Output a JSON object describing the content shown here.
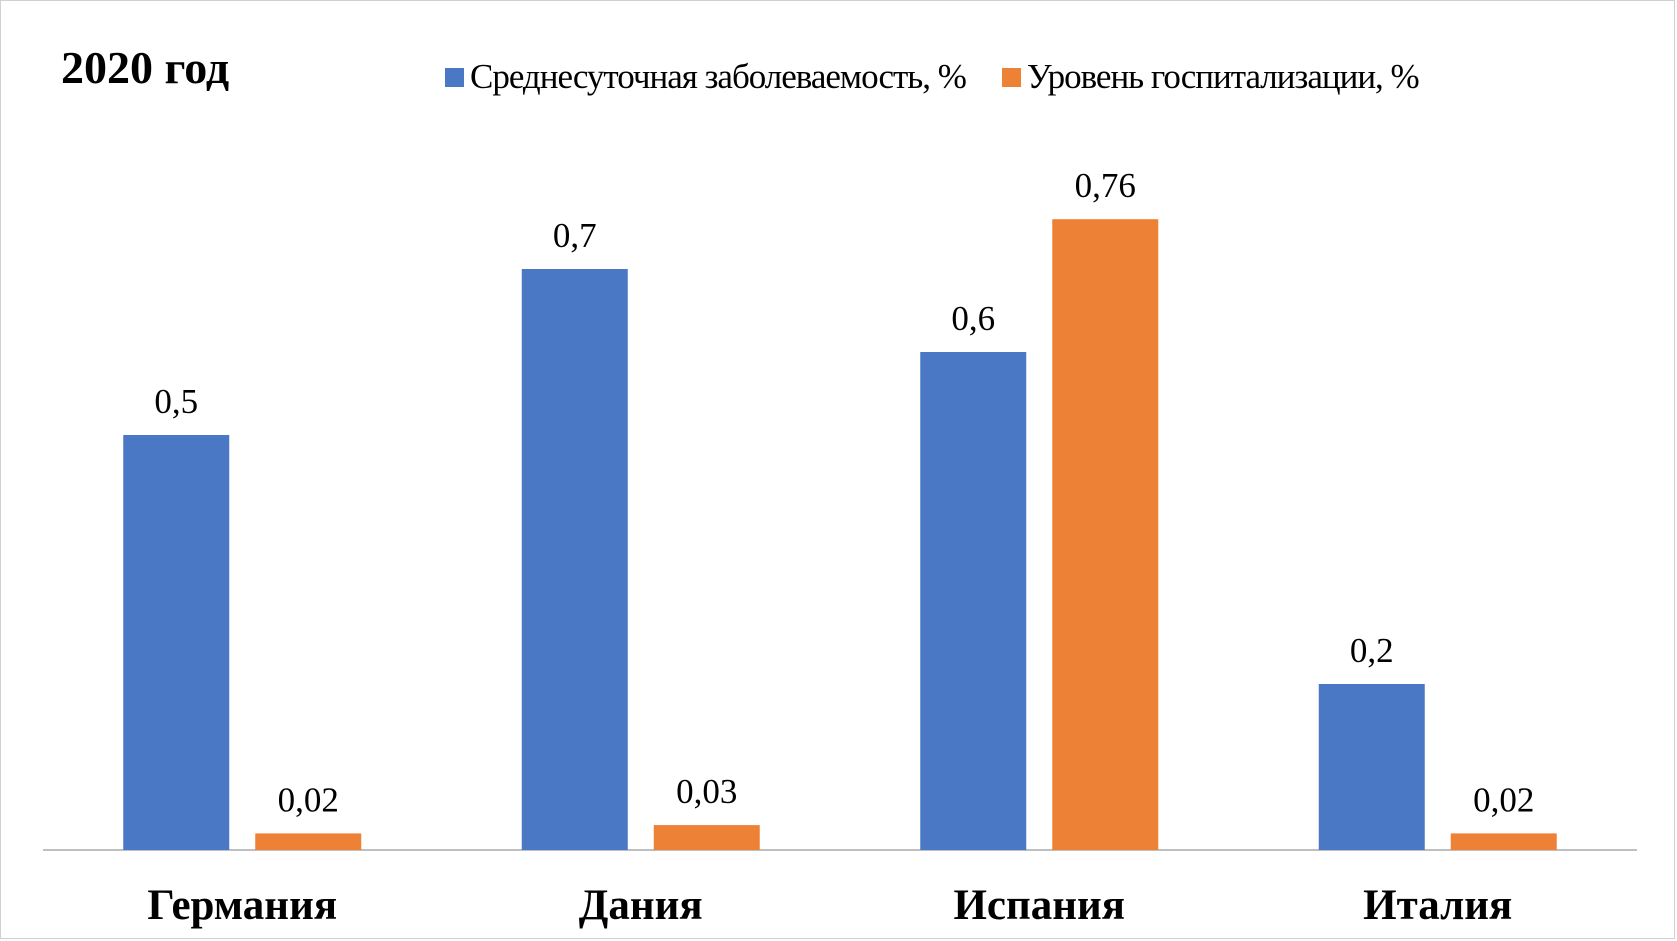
{
  "chart_data": {
    "type": "bar",
    "title": "2020 год",
    "xlabel": "",
    "ylabel": "",
    "ylim": [
      0,
      0.8
    ],
    "grid": false,
    "legend_position": "top",
    "categories": [
      "Германия",
      "Дания",
      "Испания",
      "Италия"
    ],
    "series": [
      {
        "name": "Среднесуточная заболеваемость, %",
        "color": "#4a78c5",
        "values": [
          0.5,
          0.7,
          0.6,
          0.2
        ],
        "labels": [
          "0,5",
          "0,7",
          "0,6",
          "0,2"
        ]
      },
      {
        "name": "Уровень госпитализации, %",
        "color": "#ed8236",
        "values": [
          0.02,
          0.03,
          0.76,
          0.02
        ],
        "labels": [
          "0,02",
          "0,03",
          "0,76",
          "0,02"
        ]
      }
    ]
  }
}
